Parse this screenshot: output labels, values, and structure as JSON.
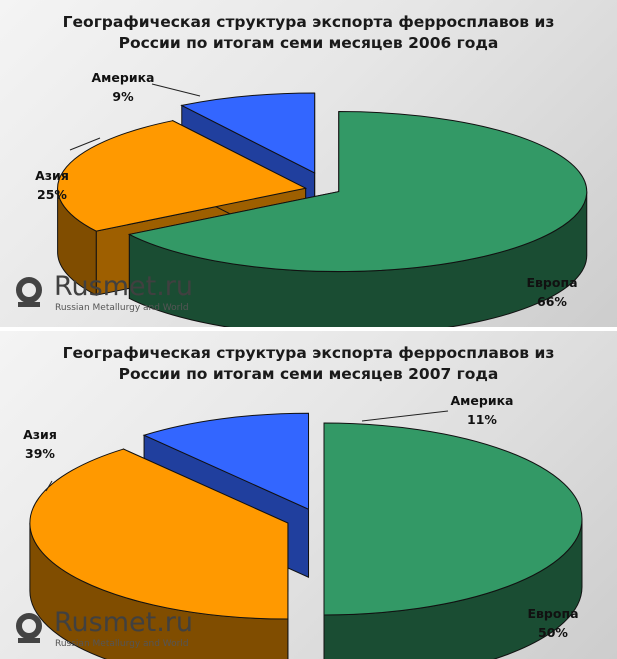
{
  "logo": {
    "name": "Rusmet.ru",
    "tagline": "Russian Metallurgy and World"
  },
  "chart_data": [
    {
      "type": "pie",
      "title_lines": [
        "Географическая структура экспорта ферросплавов из",
        "России по итогам семи месяцев 2006 года"
      ],
      "slices": [
        {
          "label": "Европа",
          "value": 66,
          "display": "66%",
          "color": "#339966"
        },
        {
          "label": "Азия",
          "value": 25,
          "display": "25%",
          "color": "#FF9900"
        },
        {
          "label": "Америка",
          "value": 9,
          "display": "9%",
          "color": "#3366FF"
        }
      ]
    },
    {
      "type": "pie",
      "title_lines": [
        "Географическая структура экспорта ферросплавов из",
        "России по итогам семи месяцев 2007 года"
      ],
      "slices": [
        {
          "label": "Европа",
          "value": 50,
          "display": "50%",
          "color": "#339966"
        },
        {
          "label": "Азия",
          "value": 39,
          "display": "39%",
          "color": "#FF9900"
        },
        {
          "label": "Америка",
          "value": 11,
          "display": "11%",
          "color": "#3366FF"
        }
      ]
    }
  ]
}
